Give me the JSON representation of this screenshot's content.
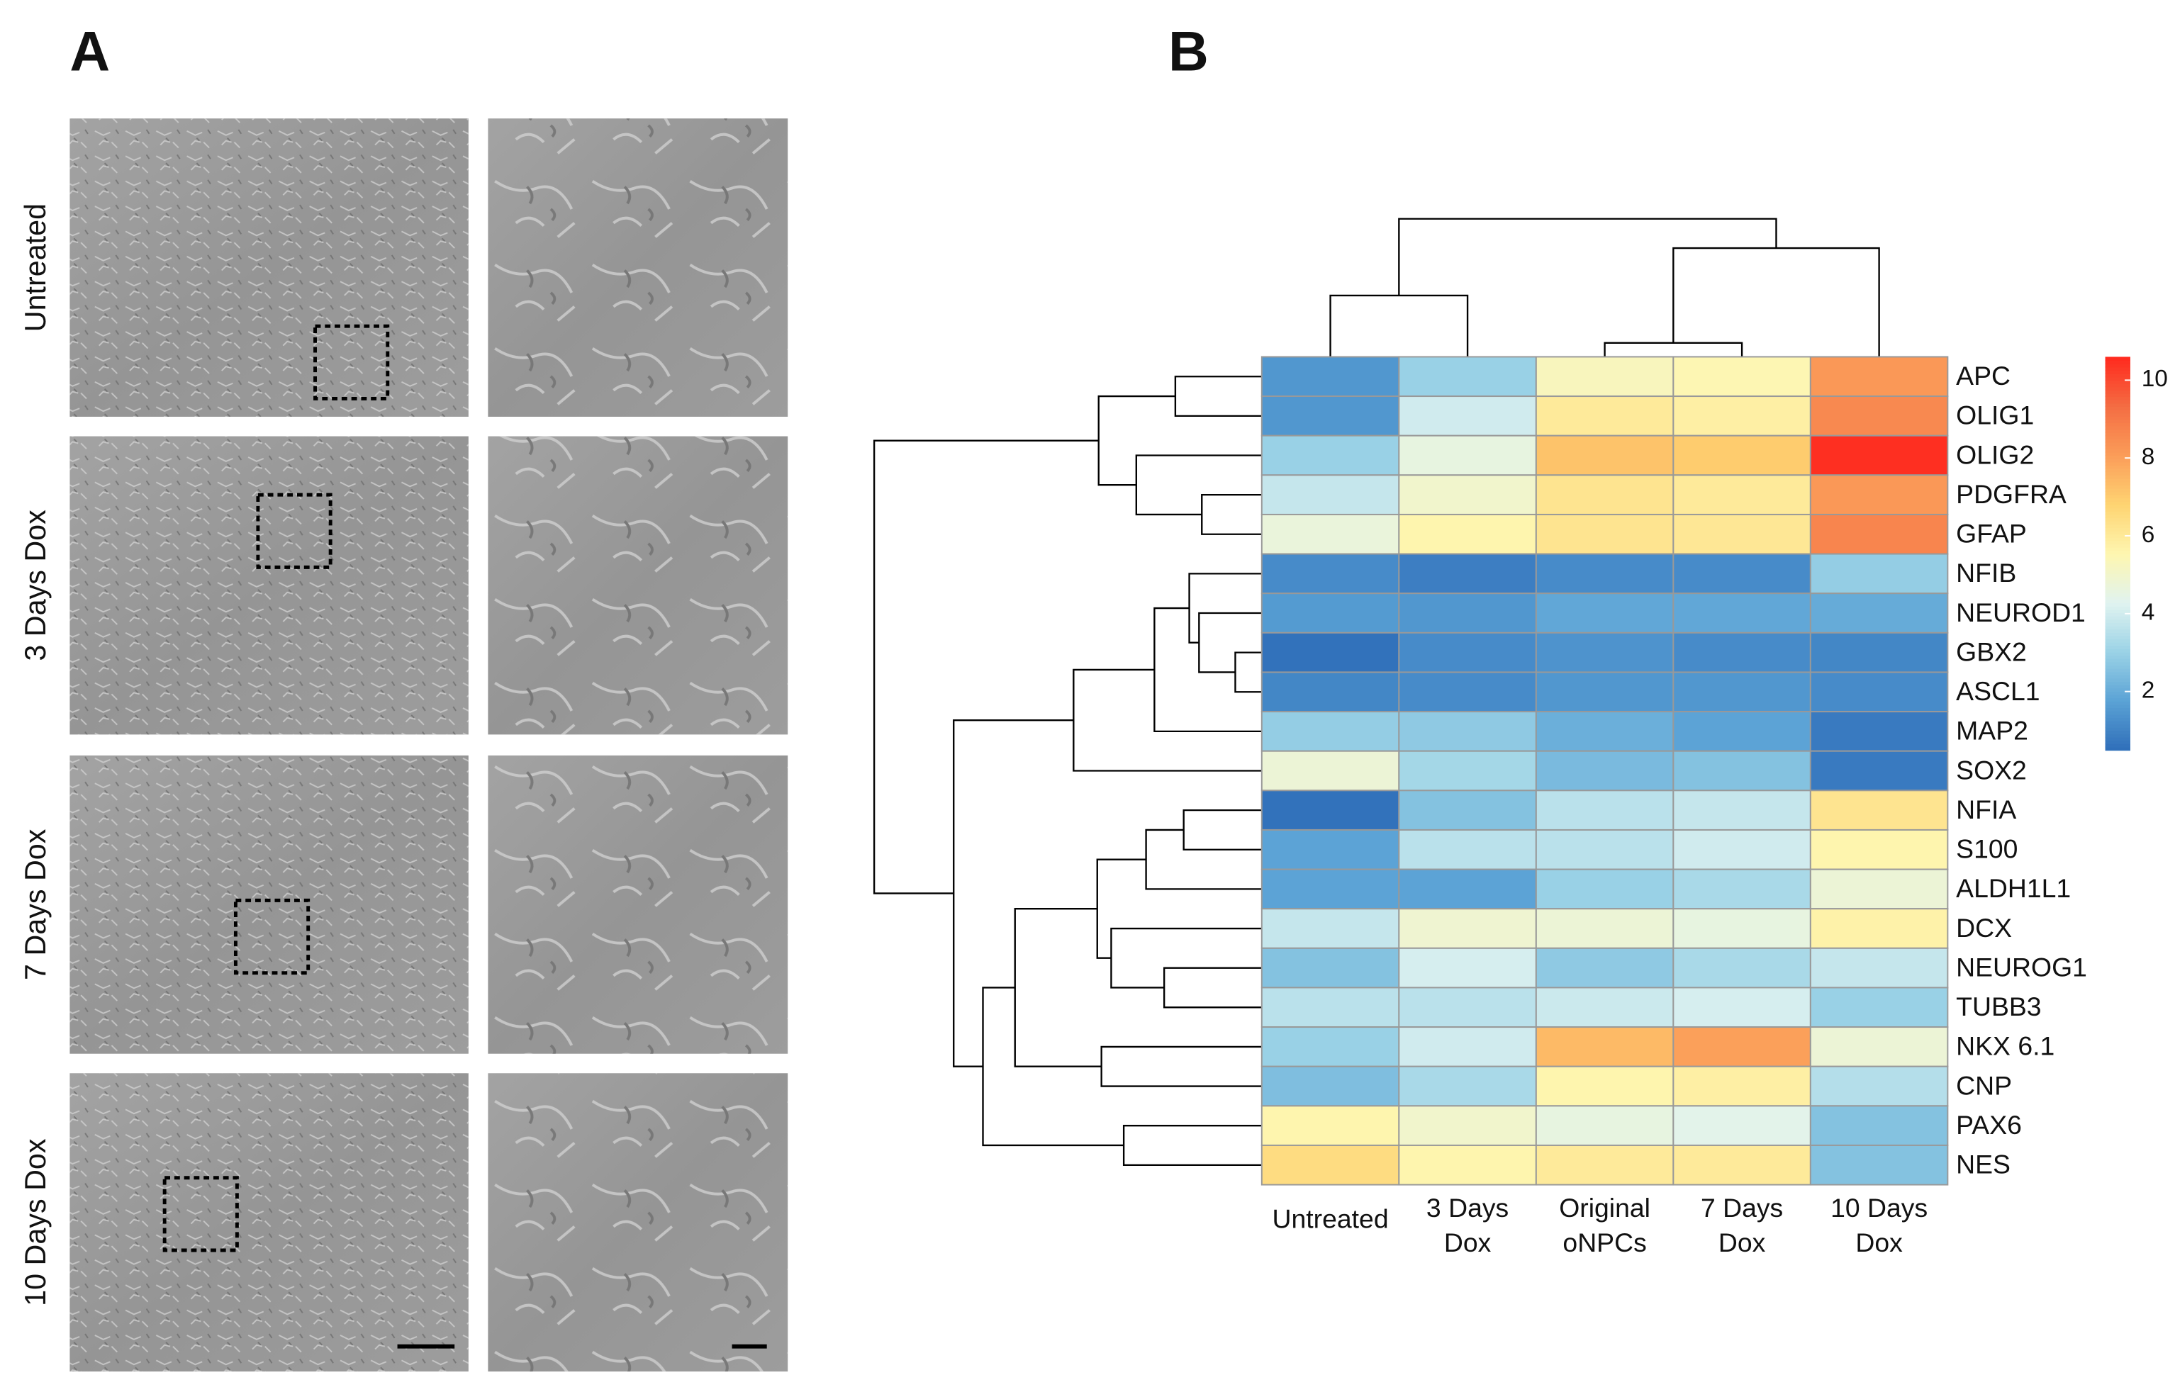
{
  "panel_a": {
    "letter": "A",
    "rows": [
      "Untreated",
      "3 Days Dox",
      "7 Days Dox",
      "10 Days Dox"
    ]
  },
  "chart_data": {
    "type": "heatmap",
    "letter": "B",
    "columns": [
      "Untreated",
      "3 Days Dox",
      "Original oNPCs",
      "7 Days Dox",
      "10 Days Dox"
    ],
    "rows": [
      "APC",
      "OLIG1",
      "OLIG2",
      "PDGFRA",
      "GFAP",
      "NFIB",
      "NEUROD1",
      "GBX2",
      "ASCL1",
      "MAP2",
      "SOX2",
      "NFIA",
      "S100",
      "ALDH1L1",
      "DCX",
      "NEUROG1",
      "TUBB3",
      "NKX 6.1",
      "CNP",
      "PAX6",
      "NES"
    ],
    "values": [
      [
        1.5,
        3,
        5.3,
        5.5,
        8.2
      ],
      [
        1.5,
        4,
        6,
        5.8,
        8.6
      ],
      [
        3,
        4.6,
        7.2,
        7,
        10.5
      ],
      [
        3.8,
        5,
        6.2,
        6,
        8.2
      ],
      [
        4.7,
        5.6,
        6.2,
        6.1,
        8.7
      ],
      [
        1.2,
        0.9,
        1.2,
        1.2,
        2.9
      ],
      [
        1.6,
        1.5,
        1.9,
        1.9,
        2
      ],
      [
        0.6,
        1.2,
        1.4,
        1.2,
        1.1
      ],
      [
        1.1,
        1.2,
        1.5,
        1.5,
        1.2
      ],
      [
        2.9,
        2.8,
        2.1,
        1.8,
        0.8
      ],
      [
        4.8,
        3.2,
        2.4,
        2.6,
        0.8
      ],
      [
        0.6,
        2.6,
        3.6,
        3.8,
        6.2
      ],
      [
        1.8,
        3.6,
        3.6,
        4,
        5.6
      ],
      [
        1.8,
        1.8,
        3,
        3.3,
        4.8
      ],
      [
        3.8,
        4.9,
        4.8,
        4.6,
        5.7
      ],
      [
        2.6,
        4.1,
        2.8,
        3.3,
        3.8
      ],
      [
        3.6,
        3.6,
        3.9,
        4.1,
        3
      ],
      [
        3,
        4,
        7.4,
        8,
        4.8
      ],
      [
        2.5,
        3.3,
        5.6,
        5.8,
        3.5
      ],
      [
        5.6,
        5,
        4.6,
        4.4,
        2.6
      ],
      [
        6.5,
        5.6,
        6,
        6,
        2.6
      ]
    ],
    "clim": [
      0.5,
      10.6
    ],
    "cticks": [
      2,
      4,
      6,
      8,
      10
    ],
    "colors": [
      "#2f6eb9",
      "#5aa2d5",
      "#9ad2e6",
      "#e0f3f0",
      "#fef6b0",
      "#fed472",
      "#fb9d59",
      "#f46d43",
      "#ff2a1e"
    ]
  }
}
